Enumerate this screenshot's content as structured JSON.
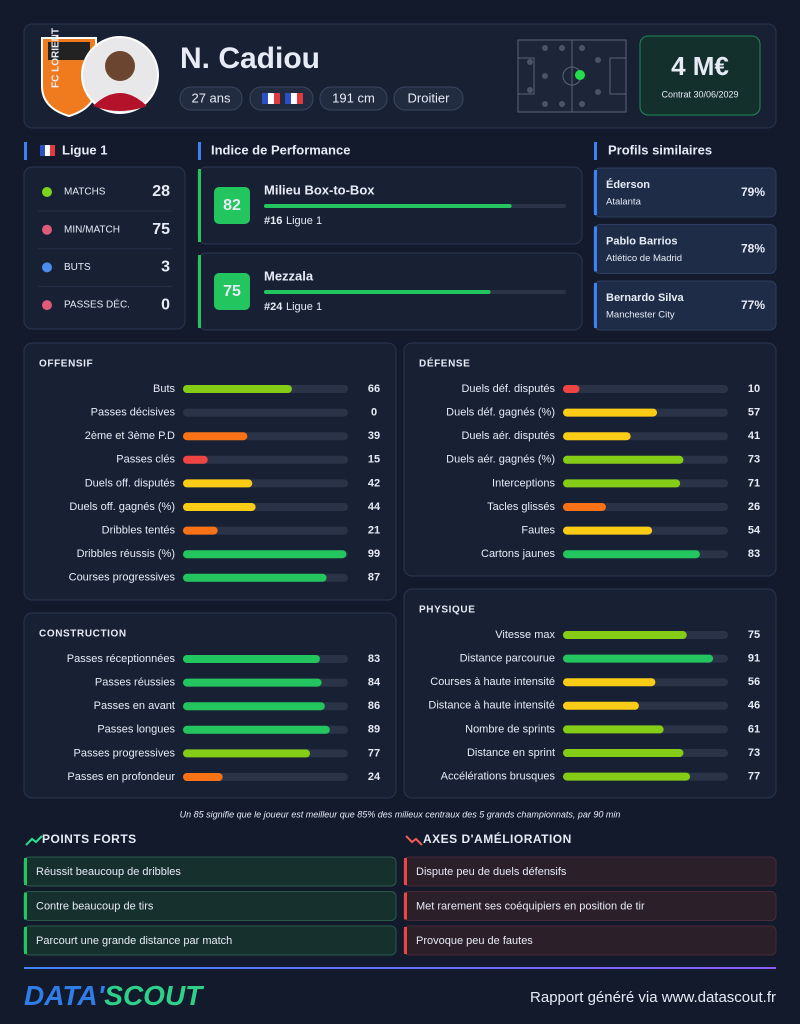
{
  "header": {
    "club": "FC LORIENT",
    "name": "N. Cadiou",
    "tags": [
      "27 ans",
      "191 cm",
      "Droitier"
    ],
    "market_value": "4 M€",
    "contract": "Contrat 30/06/2029"
  },
  "league": {
    "name": "Ligue 1",
    "stats": [
      {
        "label": "MATCHS",
        "value": 28
      },
      {
        "label": "MIN/MATCH",
        "value": 75
      },
      {
        "label": "BUTS",
        "value": 3
      },
      {
        "label": "PASSES DÉC.",
        "value": 0
      }
    ]
  },
  "performance": {
    "title": "Indice de Performance",
    "items": [
      {
        "score": 82,
        "role": "Milieu Box-to-Box",
        "rank": "#16",
        "league": "Ligue 1"
      },
      {
        "score": 75,
        "role": "Mezzala",
        "rank": "#24",
        "league": "Ligue 1"
      }
    ]
  },
  "similar": {
    "title": "Profils similaires",
    "items": [
      {
        "name": "Éderson",
        "club": "Atalanta",
        "score": "79%"
      },
      {
        "name": "Pablo Barrios",
        "club": "Atlético de Madrid",
        "score": "78%"
      },
      {
        "name": "Bernardo Silva",
        "club": "Manchester City",
        "score": "77%"
      }
    ]
  },
  "sections": [
    {
      "title": "OFFENSIF",
      "rows": [
        {
          "label": "Buts",
          "value": 66
        },
        {
          "label": "Passes décisives",
          "value": 0
        },
        {
          "label": "2ème et 3ème P.D",
          "value": 39
        },
        {
          "label": "Passes clés",
          "value": 15
        },
        {
          "label": "Duels off. disputés",
          "value": 42
        },
        {
          "label": "Duels off. gagnés (%)",
          "value": 44
        },
        {
          "label": "Dribbles tentés",
          "value": 21
        },
        {
          "label": "Dribbles réussis (%)",
          "value": 99
        },
        {
          "label": "Courses progressives",
          "value": 87
        }
      ]
    },
    {
      "title": "DÉFENSE",
      "rows": [
        {
          "label": "Duels déf. disputés",
          "value": 10
        },
        {
          "label": "Duels déf. gagnés (%)",
          "value": 57
        },
        {
          "label": "Duels aér. disputés",
          "value": 41
        },
        {
          "label": "Duels aér. gagnés (%)",
          "value": 73
        },
        {
          "label": "Interceptions",
          "value": 71
        },
        {
          "label": "Tacles glissés",
          "value": 26
        },
        {
          "label": "Fautes",
          "value": 54
        },
        {
          "label": "Cartons jaunes",
          "value": 83
        }
      ]
    },
    {
      "title": "CONSTRUCTION",
      "rows": [
        {
          "label": "Passes réceptionnées",
          "value": 83
        },
        {
          "label": "Passes réussies",
          "value": 84
        },
        {
          "label": "Passes en avant",
          "value": 86
        },
        {
          "label": "Passes longues",
          "value": 89
        },
        {
          "label": "Passes progressives",
          "value": 77
        },
        {
          "label": "Passes en profondeur",
          "value": 24
        }
      ]
    },
    {
      "title": "PHYSIQUE",
      "rows": [
        {
          "label": "Vitesse max",
          "value": 75
        },
        {
          "label": "Distance parcourue",
          "value": 91
        },
        {
          "label": "Courses à haute intensité",
          "value": 56
        },
        {
          "label": "Distance à haute intensité",
          "value": 46
        },
        {
          "label": "Nombre de sprints",
          "value": 61
        },
        {
          "label": "Distance en sprint",
          "value": 73
        },
        {
          "label": "Accélérations brusques",
          "value": 77
        }
      ]
    }
  ],
  "footnote": "Un 85 signifie que le joueur est meilleur que 85% des milieux centraux des 5 grands championnats, par 90 min",
  "strengths": {
    "title": "POINTS FORTS",
    "items": [
      "Réussit beaucoup de dribbles",
      "Contre beaucoup de tirs",
      "Parcourt une grande distance par match"
    ]
  },
  "weaknesses": {
    "title": "AXES D'AMÉLIORATION",
    "items": [
      "Dispute peu de duels défensifs",
      "Met rarement ses coéquipiers en position de tir",
      "Provoque peu de fautes"
    ]
  },
  "footer": {
    "logo": [
      "DATA'",
      "SCOUT"
    ],
    "text": "Rapport généré via www.datascout.fr"
  }
}
